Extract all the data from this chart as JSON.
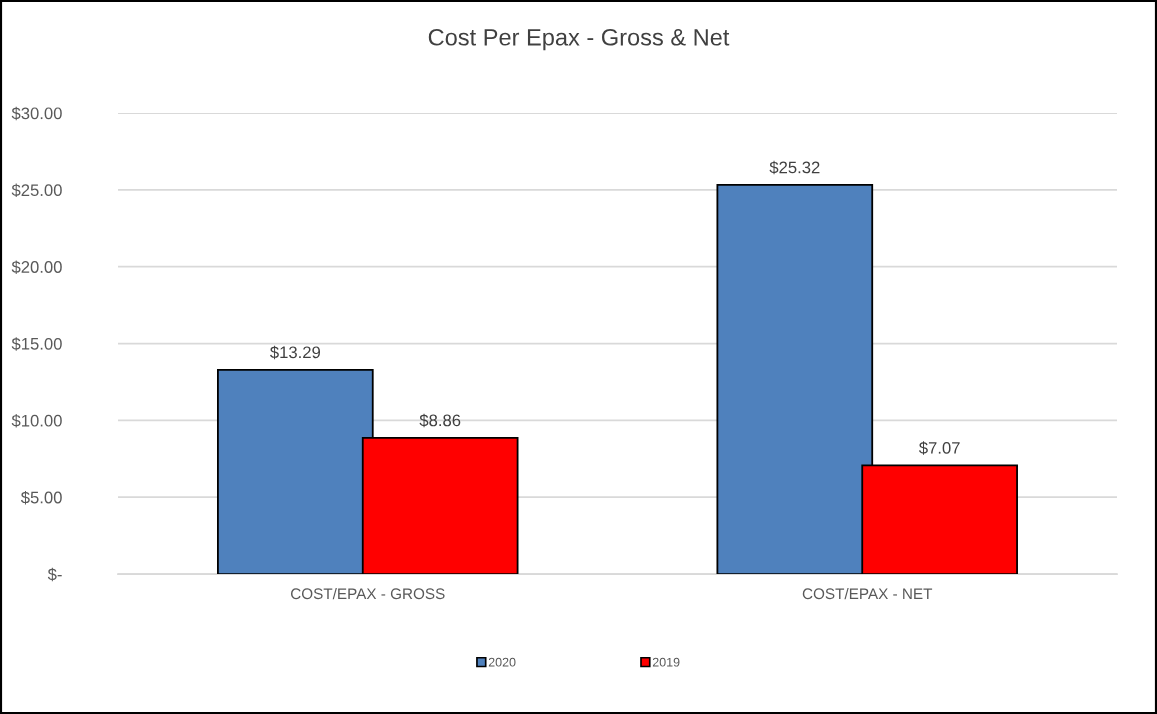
{
  "chart_data": {
    "type": "bar",
    "title": "Cost Per Epax - Gross & Net",
    "categories": [
      "COST/EPAX - GROSS",
      "COST/EPAX - NET"
    ],
    "series": [
      {
        "name": "2020",
        "color": "#4f81bd",
        "values": [
          13.29,
          25.32
        ],
        "value_labels": [
          "$13.29",
          "$25.32"
        ]
      },
      {
        "name": "2019",
        "color": "#ff0000",
        "values": [
          8.86,
          7.07
        ],
        "value_labels": [
          "$8.86",
          "$7.07"
        ]
      }
    ],
    "ylim": [
      0,
      30
    ],
    "yticks": [
      {
        "value": 0,
        "label": "$-"
      },
      {
        "value": 5,
        "label": "$5.00"
      },
      {
        "value": 10,
        "label": "$10.00"
      },
      {
        "value": 15,
        "label": "$15.00"
      },
      {
        "value": 20,
        "label": "$20.00"
      },
      {
        "value": 25,
        "label": "$25.00"
      },
      {
        "value": 30,
        "label": "$30.00"
      }
    ],
    "grid": "y",
    "legend": "bottom"
  }
}
